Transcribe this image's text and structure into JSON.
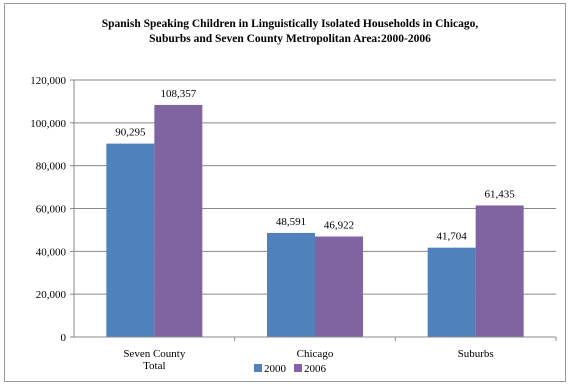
{
  "chart_data": {
    "type": "bar",
    "title": [
      "Spanish Speaking Children in Linguistically Isolated Households in Chicago,",
      "Suburbs and Seven County Metropolitan Area:2000-2006"
    ],
    "categories": [
      [
        "Seven County",
        "Total"
      ],
      [
        "Chicago"
      ],
      [
        "Suburbs"
      ]
    ],
    "series": [
      {
        "name": "2000",
        "color": "#4F81BD",
        "values": [
          90295,
          48591,
          41704
        ],
        "labels": [
          "90,295",
          "48,591",
          "41,704"
        ]
      },
      {
        "name": "2006",
        "color": "#8064A2",
        "values": [
          108357,
          46922,
          61435
        ],
        "labels": [
          "108,357",
          "46,922",
          "61,435"
        ]
      }
    ],
    "ylim": [
      0,
      120000
    ],
    "yticks": [
      0,
      20000,
      40000,
      60000,
      80000,
      100000,
      120000
    ],
    "ytick_labels": [
      "0",
      "20,000",
      "40,000",
      "60,000",
      "80,000",
      "100,000",
      "120,000"
    ],
    "grid": true,
    "legend_position": "bottom"
  }
}
